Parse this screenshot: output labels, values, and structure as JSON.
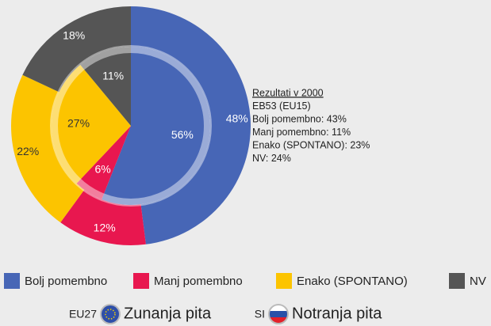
{
  "chart_data": {
    "type": "nested-pie",
    "categories": [
      "Bolj pomembno",
      "Manj pomembno",
      "Enako (SPONTANO)",
      "NV"
    ],
    "colors": [
      "#4766b6",
      "#e8174f",
      "#fcc400",
      "#555555"
    ],
    "rings": [
      {
        "label": "EU27",
        "name": "Zunanja pita",
        "values": [
          48,
          12,
          22,
          18
        ],
        "value_labels": [
          "48%",
          "12%",
          "22%",
          "18%"
        ]
      },
      {
        "label": "SI",
        "name": "Notranja pita",
        "values": [
          56,
          6,
          27,
          11
        ],
        "value_labels": [
          "56%",
          "6%",
          "27%",
          "11%"
        ]
      }
    ],
    "annotation": [
      "Rezultati v 2000",
      "EB53 (EU15)",
      "Bolj pomembno: 43%",
      "Manj pomembno: 11%",
      "Enako (SPONTANO): 23%",
      "NV: 24%"
    ]
  }
}
